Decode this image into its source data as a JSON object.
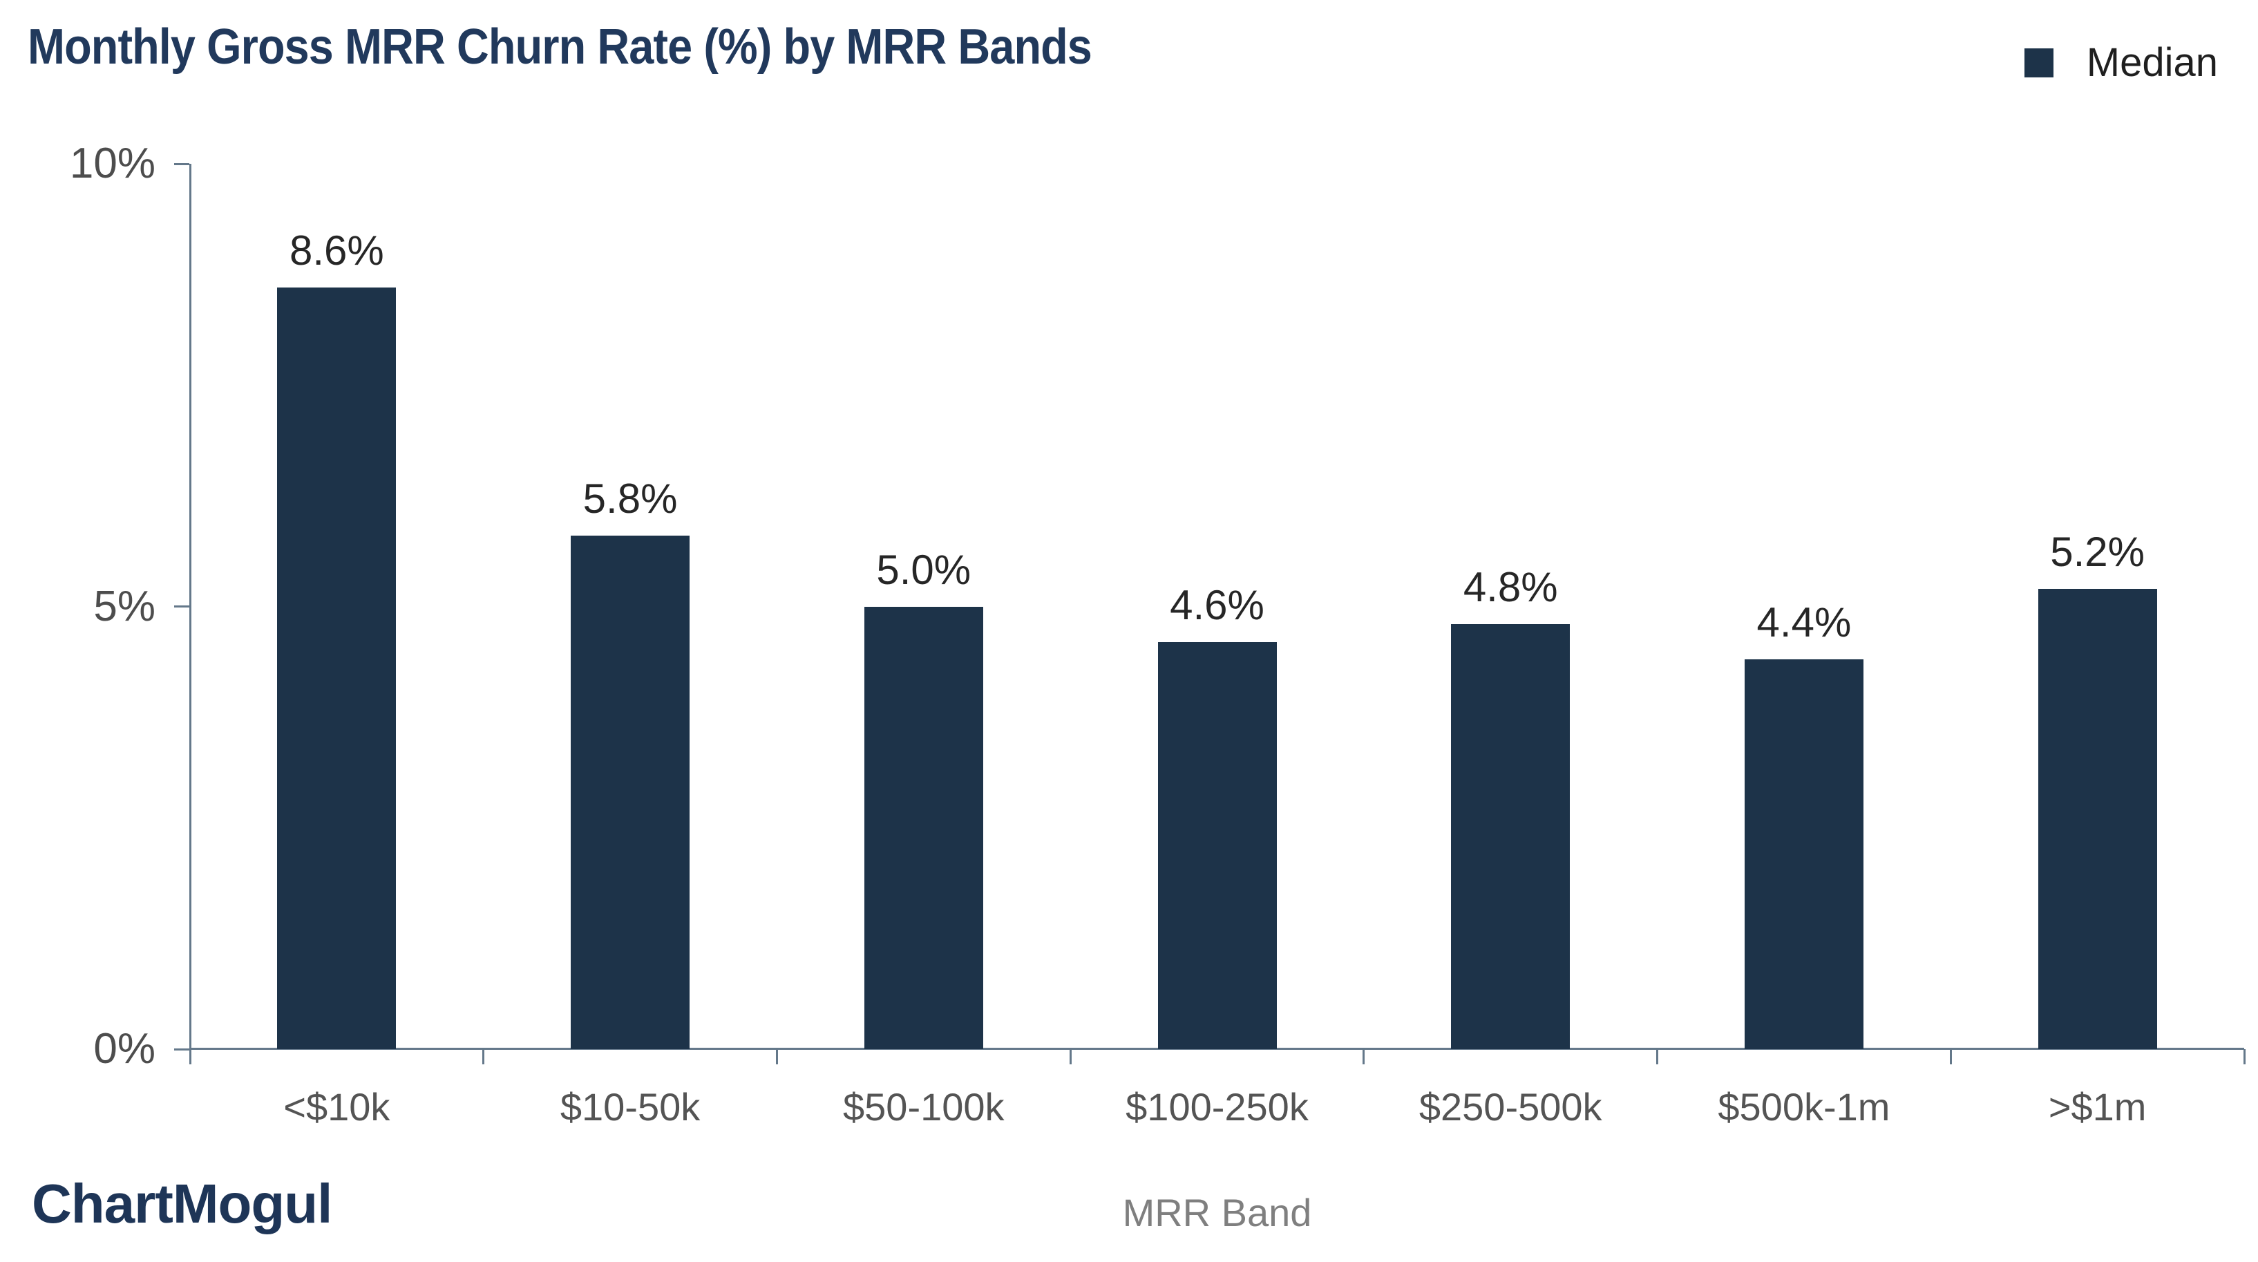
{
  "title": "Monthly Gross MRR Churn Rate (%) by MRR Bands",
  "legend": {
    "label": "Median"
  },
  "branding": {
    "logo_text": "ChartMogul"
  },
  "chart_data": {
    "type": "bar",
    "title": "Monthly Gross MRR Churn Rate (%) by MRR Bands",
    "categories": [
      "<$10k",
      "$10-50k",
      "$50-100k",
      "$100-250k",
      "$250-500k",
      "$500k-1m",
      ">$1m"
    ],
    "series": [
      {
        "name": "Median",
        "values": [
          8.6,
          5.8,
          5.0,
          4.6,
          4.8,
          4.4,
          5.2
        ]
      }
    ],
    "value_labels": [
      "8.6%",
      "5.8%",
      "5.0%",
      "4.6%",
      "4.8%",
      "4.4%",
      "5.2%"
    ],
    "xlabel": "MRR Band",
    "ylabel": "",
    "ylim": [
      0,
      10
    ],
    "yticks": [
      {
        "value": 0,
        "label": "0%"
      },
      {
        "value": 5,
        "label": "5%"
      },
      {
        "value": 10,
        "label": "10%"
      }
    ],
    "grid": false,
    "legend_position": "top-right",
    "colors": {
      "bar": "#1d3349",
      "axis": "#64788a",
      "title": "#21395c",
      "tick_label": "#4d4d4d",
      "category_label": "#545454",
      "xlabel": "#7f7f7f",
      "value_label": "#262626",
      "legend_label": "#1f1f1f",
      "logo": "#1e3557"
    }
  }
}
